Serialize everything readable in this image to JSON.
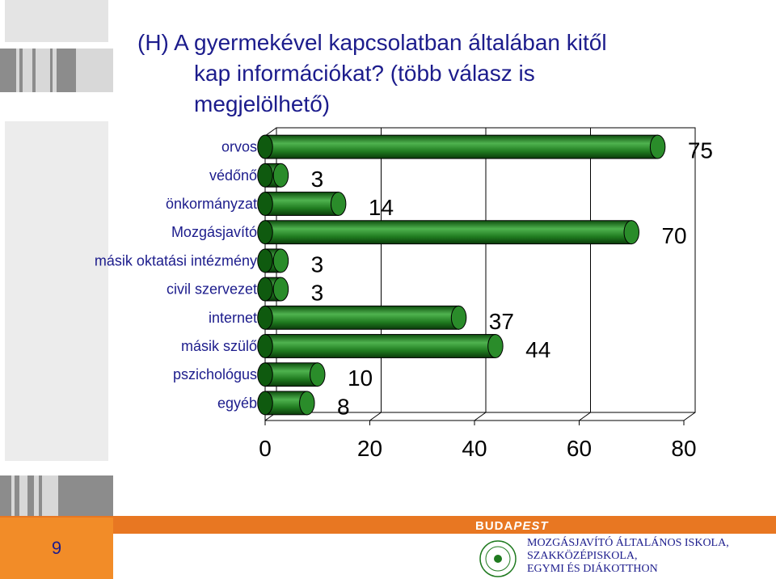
{
  "title": {
    "line1": "(H) A gyermekével kapcsolatban általában kitől",
    "line2": "kap információkat? (több válasz is",
    "line3": "megjelölhető)"
  },
  "chart_data": {
    "type": "bar",
    "orientation": "horizontal",
    "style": "3d-cylinder",
    "categories": [
      "orvos",
      "védőnő",
      "önkormányzat",
      "Mozgásjavító",
      "másik oktatási intézmény",
      "civil szervezet",
      "internet",
      "másik szülő",
      "pszichológus",
      "egyéb"
    ],
    "values": [
      75,
      3,
      14,
      70,
      3,
      3,
      37,
      44,
      10,
      8
    ],
    "xlim": [
      0,
      80
    ],
    "xticks": [
      0,
      20,
      40,
      60,
      80
    ],
    "grid": true,
    "bar_color": "#1f7a1f",
    "title": "",
    "xlabel": "",
    "ylabel": ""
  },
  "footer": {
    "page_number": "9",
    "brand_left": "BUDA",
    "brand_right": "PEST",
    "school": {
      "line1": "MOZGÁSJAVÍTÓ ÁLTALÁNOS ISKOLA,",
      "line2": "SZAKKÖZÉPISKOLA,",
      "line3": "EGYMI ÉS DIÁKOTTHON"
    }
  },
  "colors": {
    "title": "#1c1c8c",
    "footer_orange": "#e87722",
    "bar_green": "#1f7a1f"
  }
}
